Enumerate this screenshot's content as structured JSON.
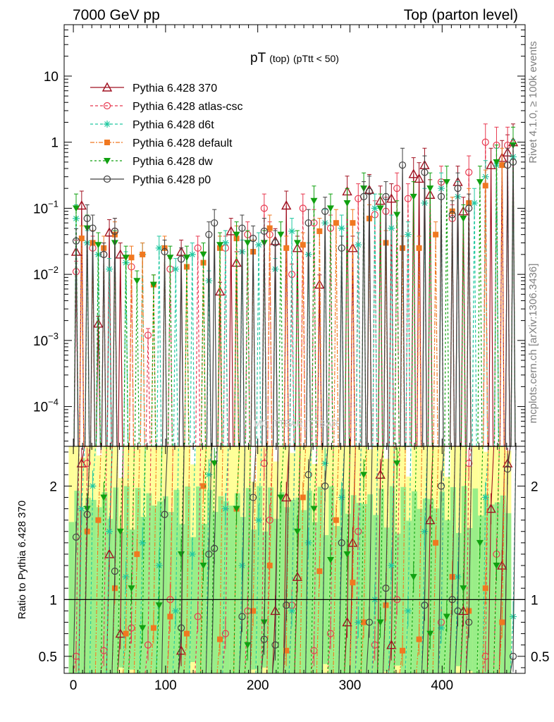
{
  "header": {
    "left": "7000 GeV pp",
    "right": "Top (parton level)"
  },
  "side_labels": {
    "rivet": "Rivet 4.1.0, ≥ 100k events",
    "mcplots": "mcplots.cern.ch [arXiv:1306.3436]"
  },
  "watermark": "MC_TTBAR_TTBAR",
  "chart_data": {
    "type": "line",
    "title": {
      "main": "pT",
      "sub1": "(top)",
      "sub2": "(pTtt < 50)"
    },
    "xlim": [
      -10,
      490
    ],
    "x_ticks": [
      0,
      100,
      200,
      300,
      400
    ],
    "x_tick_labels": [
      "0",
      "100",
      "200",
      "300",
      "400"
    ],
    "main_panel": {
      "yscale": "log",
      "ylim": [
        2.5e-05,
        60
      ],
      "y_ticks": [
        0.0001,
        0.001,
        0.01,
        0.1,
        1,
        10
      ],
      "y_tick_labels": [
        {
          "base": "10",
          "exp": "−4"
        },
        {
          "base": "10",
          "exp": "−3"
        },
        {
          "base": "10",
          "exp": "−2"
        },
        {
          "base": "10",
          "exp": "−1"
        },
        {
          "base": "1",
          "exp": ""
        },
        {
          "base": "10",
          "exp": ""
        }
      ]
    },
    "ratio_panel": {
      "ylabel": "Ratio to Pythia 6.428 370",
      "ylim": [
        0.35,
        2.35
      ],
      "y_ticks": [
        0.5,
        1,
        2
      ],
      "y_tick_labels": [
        "0.5",
        "1",
        "2"
      ],
      "reference_line": 1
    },
    "legend": {
      "placement": "top-left",
      "entries": [
        "Pythia 6.428 370",
        "Pythia 6.428 atlas-csc",
        "Pythia 6.428 d6t",
        "Pythia 6.428 default",
        "Pythia 6.428 dw",
        "Pythia 6.428 p0"
      ]
    },
    "series": [
      {
        "name": "Pythia 6.428 370",
        "color": "#a01020",
        "marker": "triangle-open",
        "dash": "",
        "x": [
          3,
          9,
          27,
          39,
          51,
          117,
          159,
          171,
          177,
          219,
          231,
          243,
          267,
          297,
          303,
          321,
          333,
          345,
          369,
          375,
          381,
          387,
          417,
          423,
          453,
          465,
          471,
          477
        ],
        "y": [
          0.022,
          0.11,
          0.0018,
          0.043,
          0.02,
          0.022,
          0.0055,
          0.045,
          0.015,
          0.032,
          0.11,
          0.025,
          0.007,
          0.18,
          0.025,
          0.19,
          0.13,
          0.14,
          0.33,
          0.28,
          0.45,
          0.16,
          0.25,
          0.09,
          0.45,
          0.58,
          0.7,
          1.0
        ]
      },
      {
        "name": "Pythia 6.428 atlas-csc",
        "color": "#e8384f",
        "marker": "circle-open",
        "dash": "4 3",
        "x": [
          3,
          21,
          33,
          45,
          63,
          81,
          105,
          135,
          165,
          189,
          207,
          213,
          237,
          249,
          261,
          279,
          309,
          327,
          339,
          351,
          363,
          399,
          411,
          429,
          447,
          459,
          471
        ],
        "y": [
          0.011,
          0.025,
          0.02,
          0.045,
          0.013,
          0.0012,
          0.012,
          0.025,
          0.025,
          0.04,
          0.1,
          0.04,
          0.01,
          0.1,
          0.06,
          0.05,
          0.14,
          0.08,
          0.09,
          0.2,
          0.14,
          0.25,
          0.07,
          0.35,
          1.0,
          0.9,
          0.9
        ]
      },
      {
        "name": "Pythia 6.428 d6t",
        "color": "#20c8a0",
        "marker": "star",
        "dash": "4 3",
        "x": [
          3,
          15,
          27,
          39,
          57,
          75,
          93,
          111,
          129,
          147,
          165,
          183,
          201,
          219,
          237,
          255,
          273,
          291,
          309,
          327,
          345,
          363,
          381,
          399,
          417,
          435,
          447,
          459,
          477
        ],
        "y": [
          0.07,
          0.03,
          0.02,
          0.012,
          0.015,
          0.02,
          0.025,
          0.012,
          0.02,
          0.008,
          0.03,
          0.022,
          0.028,
          0.012,
          0.045,
          0.02,
          0.06,
          0.05,
          0.028,
          0.1,
          0.05,
          0.04,
          0.12,
          0.2,
          0.15,
          0.12,
          0.3,
          0.45,
          0.6
        ]
      },
      {
        "name": "Pythia 6.428 default",
        "color": "#f07820",
        "marker": "square",
        "dash": "6 2 2 2",
        "x": [
          9,
          21,
          33,
          45,
          63,
          75,
          87,
          99,
          123,
          141,
          159,
          177,
          195,
          213,
          231,
          249,
          267,
          285,
          303,
          321,
          339,
          357,
          375,
          393,
          411,
          429,
          447,
          465
        ],
        "y": [
          0.035,
          0.03,
          0.025,
          0.04,
          0.018,
          0.02,
          0.007,
          0.025,
          0.013,
          0.015,
          0.025,
          0.035,
          0.022,
          0.05,
          0.025,
          0.028,
          0.045,
          0.06,
          0.06,
          0.07,
          0.03,
          0.025,
          0.025,
          0.04,
          0.09,
          0.12,
          0.22,
          0.45
        ]
      },
      {
        "name": "Pythia 6.428 dw",
        "color": "#10a010",
        "marker": "triangle-down",
        "dash": "3 3",
        "x": [
          3,
          15,
          27,
          45,
          57,
          69,
          87,
          105,
          123,
          141,
          159,
          177,
          189,
          207,
          225,
          243,
          261,
          279,
          297,
          315,
          333,
          351,
          369,
          387,
          405,
          423,
          441,
          459,
          477
        ],
        "y": [
          0.1,
          0.05,
          0.028,
          0.03,
          0.018,
          0.008,
          0.007,
          0.018,
          0.018,
          0.02,
          0.028,
          0.04,
          0.03,
          0.03,
          0.04,
          0.03,
          0.13,
          0.1,
          0.12,
          0.2,
          0.1,
          0.08,
          0.15,
          0.2,
          0.25,
          0.07,
          0.25,
          0.5,
          0.9
        ]
      },
      {
        "name": "Pythia 6.428 p0",
        "color": "#404040",
        "marker": "circle-open",
        "dash": "",
        "x": [
          3,
          15,
          21,
          33,
          45,
          99,
          117,
          147,
          153,
          183,
          195,
          207,
          219,
          255,
          273,
          291,
          315,
          321,
          339,
          357,
          381,
          399,
          411,
          417,
          429,
          471,
          477
        ],
        "y": [
          0.032,
          0.07,
          0.05,
          0.02,
          0.045,
          0.022,
          0.017,
          0.04,
          0.06,
          0.05,
          0.035,
          0.045,
          0.03,
          0.06,
          0.09,
          0.025,
          0.15,
          0.18,
          0.15,
          0.45,
          0.35,
          0.15,
          0.08,
          0.2,
          0.1,
          0.45,
          0.5
        ]
      }
    ],
    "ratios": [
      {
        "x": [
          9,
          39,
          51,
          117,
          219,
          231,
          243,
          297,
          303,
          333,
          345,
          387,
          423,
          453,
          465,
          471
        ],
        "y": [
          2.2,
          1.4,
          0.7,
          0.55,
          0.9,
          1.9,
          1.2,
          0.8,
          1.5,
          2.1,
          0.6,
          1.7,
          0.9,
          1.8,
          1.3,
          2.2
        ]
      },
      {
        "x": [
          3,
          15,
          33,
          63,
          81,
          105,
          135,
          165,
          189,
          207,
          213,
          237,
          261,
          279,
          309,
          327,
          351,
          399,
          429,
          447,
          459
        ],
        "y": [
          0.5,
          2.2,
          0.55,
          0.75,
          0.6,
          1.0,
          0.85,
          0.7,
          0.9,
          2.2,
          1.7,
          0.95,
          0.55,
          0.7,
          1.6,
          0.6,
          1.0,
          0.8,
          2.2,
          0.5,
          1.4
        ]
      },
      {
        "x": [
          9,
          21,
          39,
          57,
          75,
          93,
          111,
          129,
          147,
          165,
          183,
          201,
          237,
          255,
          273,
          291,
          309,
          327,
          345,
          363,
          381,
          399,
          417,
          447,
          477
        ],
        "y": [
          1.8,
          2.0,
          1.6,
          1.2,
          1.5,
          1.3,
          0.9,
          1.4,
          2.1,
          1.8,
          1.3,
          1.7,
          0.9,
          1.5,
          2.2,
          1.9,
          0.8,
          1.0,
          1.3,
          0.9,
          1.6,
          0.75,
          1.2,
          1.9,
          0.85
        ]
      },
      {
        "x": [
          15,
          27,
          45,
          57,
          69,
          87,
          105,
          123,
          141,
          159,
          177,
          195,
          213,
          231,
          249,
          267,
          285,
          303,
          315,
          339,
          357,
          375,
          393,
          411,
          429,
          447,
          465
        ],
        "y": [
          1.6,
          1.7,
          1.1,
          0.7,
          1.4,
          0.75,
          0.85,
          0.7,
          2.0,
          0.65,
          1.8,
          0.9,
          1.3,
          0.55,
          1.9,
          1.25,
          1.7,
          1.15,
          0.8,
          0.95,
          0.55,
          0.65,
          1.5,
          1.2,
          0.9,
          1.1,
          0.8
        ]
      },
      {
        "x": [
          15,
          33,
          51,
          63,
          75,
          93,
          117,
          141,
          153,
          177,
          189,
          207,
          225,
          243,
          261,
          279,
          297,
          315,
          333,
          351,
          369,
          387,
          405,
          423,
          441,
          459
        ],
        "y": [
          1.8,
          1.9,
          1.6,
          1.1,
          0.75,
          0.95,
          1.4,
          1.3,
          2.2,
          1.8,
          0.6,
          0.8,
          1.9,
          1.6,
          1.8,
          1.35,
          1.4,
          2.1,
          0.8,
          2.2,
          1.2,
          0.7,
          0.85,
          1.1,
          1.5,
          1.3
        ]
      },
      {
        "x": [
          3,
          15,
          45,
          99,
          117,
          147,
          153,
          183,
          195,
          207,
          219,
          231,
          255,
          273,
          291,
          321,
          339,
          381,
          399,
          411,
          417,
          429,
          471,
          477
        ],
        "y": [
          1.55,
          1.75,
          1.25,
          1.75,
          0.75,
          1.4,
          1.45,
          0.85,
          1.9,
          0.65,
          0.6,
          0.95,
          2.1,
          2.0,
          1.5,
          0.8,
          1.1,
          0.95,
          2.0,
          1.0,
          0.9,
          0.8,
          2.15,
          0.5
        ]
      }
    ]
  }
}
